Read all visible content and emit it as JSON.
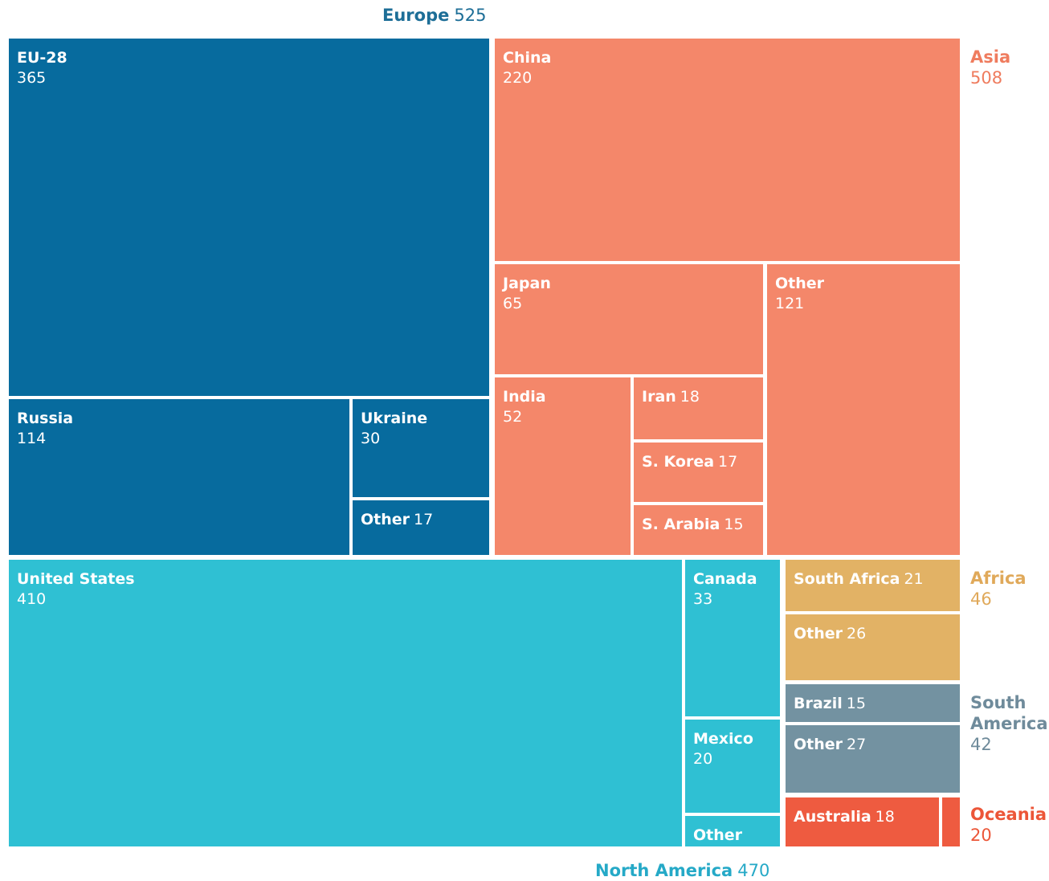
{
  "chart_data": {
    "type": "treemap",
    "colors": {
      "Europe": "#076b9e",
      "Asia": "#f4876a",
      "North America": "#2fc0d3",
      "Africa": "#e2b265",
      "South America": "#7392a1",
      "Oceania": "#ee5b40"
    },
    "region_label_colors": {
      "Europe": "#1d6e97",
      "Asia": "#ef7c5e",
      "North America": "#25a9c7",
      "Africa": "#e0a95a",
      "South America": "#6f8b9b",
      "Oceania": "#ec5638"
    },
    "regions": [
      {
        "name": "Europe",
        "value": "525",
        "children": [
          {
            "name": "EU-28",
            "value": "365"
          },
          {
            "name": "Russia",
            "value": "114"
          },
          {
            "name": "Ukraine",
            "value": "30"
          },
          {
            "name": "Other",
            "value": "17"
          }
        ]
      },
      {
        "name": "Asia",
        "value": "508",
        "children": [
          {
            "name": "China",
            "value": "220"
          },
          {
            "name": "Japan",
            "value": "65"
          },
          {
            "name": "Other",
            "value": "121"
          },
          {
            "name": "India",
            "value": "52"
          },
          {
            "name": "Iran",
            "value": "18"
          },
          {
            "name": "S. Korea",
            "value": "17"
          },
          {
            "name": "S. Arabia",
            "value": "15"
          }
        ]
      },
      {
        "name": "North America",
        "value": "470",
        "children": [
          {
            "name": "United States",
            "value": "410"
          },
          {
            "name": "Canada",
            "value": "33"
          },
          {
            "name": "Mexico",
            "value": "20"
          },
          {
            "name": "Other",
            "value": ""
          }
        ]
      },
      {
        "name": "Africa",
        "value": "46",
        "children": [
          {
            "name": "South Africa",
            "value": "21"
          },
          {
            "name": "Other",
            "value": "26"
          }
        ]
      },
      {
        "name": "South America",
        "value": "42",
        "children": [
          {
            "name": "Brazil",
            "value": "15"
          },
          {
            "name": "Other",
            "value": "27"
          }
        ]
      },
      {
        "name": "Oceania",
        "value": "20",
        "children": [
          {
            "name": "Australia",
            "value": "18"
          },
          {
            "name": "",
            "value": ""
          }
        ]
      }
    ]
  }
}
